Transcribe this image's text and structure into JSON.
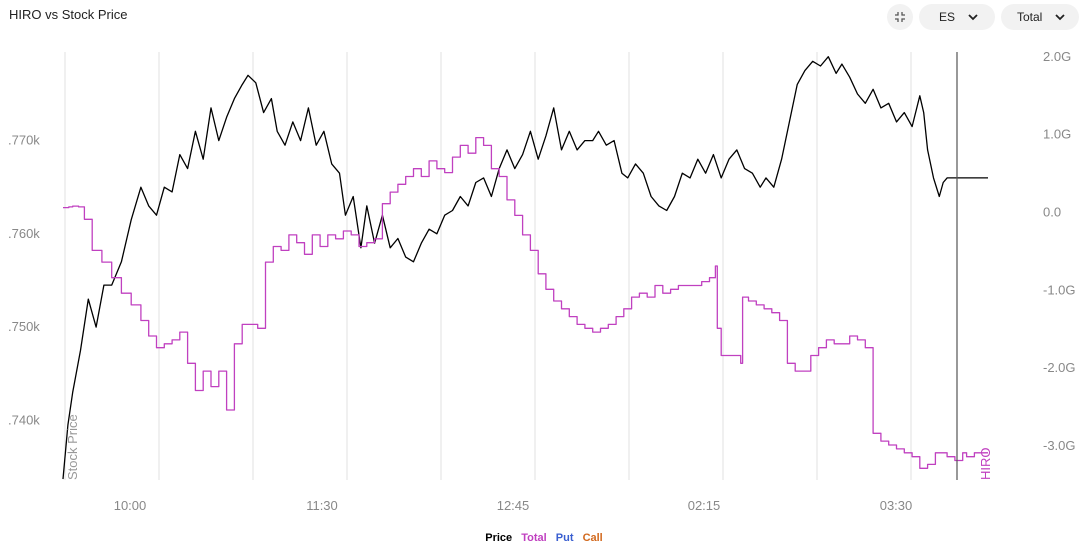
{
  "header": {
    "title": "HIRO vs Stock Price",
    "symbol_select": "ES",
    "type_select": "Total"
  },
  "icons": {
    "collapse": "collapse-arrows-icon",
    "dropdown": "chevron-down-icon"
  },
  "colors": {
    "price": "#000000",
    "total": "#c040c0",
    "put": "#3a5fd0",
    "call": "#d2691e",
    "grid": "#e2e2e2",
    "axis_text": "#888888"
  },
  "chart_data": {
    "type": "line",
    "title": "HIRO vs Stock Price",
    "xlabel": "",
    "ylabel_left": "Stock Price",
    "ylabel_right": "HIRO",
    "x_ticks": [
      "10:00",
      "11:30",
      "12:45",
      "02:15",
      "03:30"
    ],
    "y_left_ticks": [
      ".740k",
      ".750k",
      ".760k",
      ".770k"
    ],
    "y_right_ticks": [
      "2.0G",
      "1.0G",
      "0.0",
      "-1.0G",
      "-2.0G",
      "-3.0G"
    ],
    "y_left_range": [
      0.7336,
      0.7795
    ],
    "y_right_range": [
      -3.45,
      2.05
    ],
    "grid": true,
    "legend": [
      "Price",
      "Total",
      "Put",
      "Call"
    ],
    "legend_position": "bottom",
    "series": [
      {
        "name": "Price",
        "axis": "left",
        "points": [
          [
            0,
            0.7337
          ],
          [
            0.005,
            0.7395
          ],
          [
            0.01,
            0.743
          ],
          [
            0.018,
            0.7475
          ],
          [
            0.026,
            0.753
          ],
          [
            0.034,
            0.75
          ],
          [
            0.042,
            0.7545
          ],
          [
            0.05,
            0.7545
          ],
          [
            0.06,
            0.757
          ],
          [
            0.07,
            0.7615
          ],
          [
            0.08,
            0.765
          ],
          [
            0.088,
            0.763
          ],
          [
            0.096,
            0.762
          ],
          [
            0.104,
            0.765
          ],
          [
            0.112,
            0.7645
          ],
          [
            0.12,
            0.7685
          ],
          [
            0.128,
            0.767
          ],
          [
            0.136,
            0.771
          ],
          [
            0.144,
            0.768
          ],
          [
            0.152,
            0.7735
          ],
          [
            0.16,
            0.77
          ],
          [
            0.168,
            0.7725
          ],
          [
            0.176,
            0.7745
          ],
          [
            0.184,
            0.776
          ],
          [
            0.19,
            0.777
          ],
          [
            0.198,
            0.7762
          ],
          [
            0.206,
            0.773
          ],
          [
            0.214,
            0.7745
          ],
          [
            0.22,
            0.771
          ],
          [
            0.228,
            0.7695
          ],
          [
            0.236,
            0.772
          ],
          [
            0.244,
            0.77
          ],
          [
            0.252,
            0.7735
          ],
          [
            0.26,
            0.7695
          ],
          [
            0.268,
            0.771
          ],
          [
            0.276,
            0.7675
          ],
          [
            0.284,
            0.7665
          ],
          [
            0.29,
            0.762
          ],
          [
            0.298,
            0.764
          ],
          [
            0.306,
            0.7585
          ],
          [
            0.312,
            0.763
          ],
          [
            0.32,
            0.759
          ],
          [
            0.328,
            0.762
          ],
          [
            0.336,
            0.7585
          ],
          [
            0.344,
            0.7595
          ],
          [
            0.352,
            0.7575
          ],
          [
            0.36,
            0.757
          ],
          [
            0.368,
            0.759
          ],
          [
            0.376,
            0.7605
          ],
          [
            0.384,
            0.76
          ],
          [
            0.392,
            0.762
          ],
          [
            0.4,
            0.7625
          ],
          [
            0.408,
            0.764
          ],
          [
            0.416,
            0.763
          ],
          [
            0.424,
            0.7655
          ],
          [
            0.432,
            0.766
          ],
          [
            0.44,
            0.764
          ],
          [
            0.448,
            0.767
          ],
          [
            0.456,
            0.769
          ],
          [
            0.464,
            0.767
          ],
          [
            0.472,
            0.7685
          ],
          [
            0.48,
            0.771
          ],
          [
            0.488,
            0.768
          ],
          [
            0.496,
            0.7705
          ],
          [
            0.504,
            0.7735
          ],
          [
            0.512,
            0.769
          ],
          [
            0.52,
            0.771
          ],
          [
            0.528,
            0.769
          ],
          [
            0.536,
            0.77
          ],
          [
            0.544,
            0.77
          ],
          [
            0.55,
            0.771
          ],
          [
            0.558,
            0.7695
          ],
          [
            0.566,
            0.77
          ],
          [
            0.574,
            0.7665
          ],
          [
            0.58,
            0.766
          ],
          [
            0.588,
            0.7675
          ],
          [
            0.596,
            0.7665
          ],
          [
            0.604,
            0.764
          ],
          [
            0.612,
            0.763
          ],
          [
            0.62,
            0.7625
          ],
          [
            0.628,
            0.764
          ],
          [
            0.636,
            0.7665
          ],
          [
            0.644,
            0.766
          ],
          [
            0.652,
            0.768
          ],
          [
            0.66,
            0.7665
          ],
          [
            0.668,
            0.7685
          ],
          [
            0.676,
            0.766
          ],
          [
            0.684,
            0.768
          ],
          [
            0.692,
            0.769
          ],
          [
            0.7,
            0.767
          ],
          [
            0.708,
            0.7665
          ],
          [
            0.716,
            0.765
          ],
          [
            0.722,
            0.766
          ],
          [
            0.73,
            0.765
          ],
          [
            0.738,
            0.768
          ],
          [
            0.746,
            0.772
          ],
          [
            0.754,
            0.776
          ],
          [
            0.762,
            0.7775
          ],
          [
            0.77,
            0.7785
          ],
          [
            0.778,
            0.778
          ],
          [
            0.786,
            0.779
          ],
          [
            0.794,
            0.7772
          ],
          [
            0.8,
            0.7782
          ],
          [
            0.808,
            0.7768
          ],
          [
            0.816,
            0.775
          ],
          [
            0.824,
            0.774
          ],
          [
            0.832,
            0.7755
          ],
          [
            0.84,
            0.7735
          ],
          [
            0.848,
            0.774
          ],
          [
            0.856,
            0.772
          ],
          [
            0.864,
            0.773
          ],
          [
            0.872,
            0.7715
          ],
          [
            0.88,
            0.7748
          ],
          [
            0.884,
            0.773
          ],
          [
            0.888,
            0.769
          ],
          [
            0.894,
            0.766
          ],
          [
            0.9,
            0.764
          ],
          [
            0.904,
            0.7655
          ],
          [
            0.908,
            0.766
          ],
          [
            0.915,
            0.766
          ],
          [
            0.93,
            0.766
          ],
          [
            0.95,
            0.766
          ]
        ]
      },
      {
        "name": "Total",
        "axis": "right",
        "points": [
          [
            0,
            0.05
          ],
          [
            0.006,
            0.06
          ],
          [
            0.01,
            0.07
          ],
          [
            0.016,
            0.06
          ],
          [
            0.022,
            -0.1
          ],
          [
            0.03,
            -0.5
          ],
          [
            0.04,
            -0.65
          ],
          [
            0.05,
            -0.85
          ],
          [
            0.06,
            -1.05
          ],
          [
            0.07,
            -1.2
          ],
          [
            0.08,
            -1.4
          ],
          [
            0.088,
            -1.6
          ],
          [
            0.096,
            -1.75
          ],
          [
            0.104,
            -1.7
          ],
          [
            0.112,
            -1.65
          ],
          [
            0.12,
            -1.55
          ],
          [
            0.128,
            -1.95
          ],
          [
            0.136,
            -2.3
          ],
          [
            0.144,
            -2.05
          ],
          [
            0.152,
            -2.25
          ],
          [
            0.16,
            -2.05
          ],
          [
            0.168,
            -2.55
          ],
          [
            0.176,
            -1.7
          ],
          [
            0.184,
            -1.45
          ],
          [
            0.192,
            -1.45
          ],
          [
            0.2,
            -1.5
          ],
          [
            0.208,
            -0.65
          ],
          [
            0.216,
            -0.45
          ],
          [
            0.224,
            -0.5
          ],
          [
            0.232,
            -0.3
          ],
          [
            0.24,
            -0.4
          ],
          [
            0.248,
            -0.55
          ],
          [
            0.256,
            -0.3
          ],
          [
            0.264,
            -0.45
          ],
          [
            0.272,
            -0.3
          ],
          [
            0.28,
            -0.35
          ],
          [
            0.288,
            -0.25
          ],
          [
            0.296,
            -0.3
          ],
          [
            0.304,
            -0.45
          ],
          [
            0.312,
            -0.4
          ],
          [
            0.32,
            -0.35
          ],
          [
            0.328,
            0.1
          ],
          [
            0.336,
            0.25
          ],
          [
            0.344,
            0.35
          ],
          [
            0.352,
            0.45
          ],
          [
            0.36,
            0.55
          ],
          [
            0.368,
            0.45
          ],
          [
            0.376,
            0.65
          ],
          [
            0.384,
            0.55
          ],
          [
            0.392,
            0.5
          ],
          [
            0.4,
            0.7
          ],
          [
            0.408,
            0.85
          ],
          [
            0.416,
            0.75
          ],
          [
            0.424,
            0.95
          ],
          [
            0.432,
            0.85
          ],
          [
            0.44,
            0.55
          ],
          [
            0.448,
            0.45
          ],
          [
            0.456,
            0.15
          ],
          [
            0.464,
            -0.05
          ],
          [
            0.472,
            -0.3
          ],
          [
            0.48,
            -0.5
          ],
          [
            0.488,
            -0.8
          ],
          [
            0.496,
            -1.0
          ],
          [
            0.504,
            -1.15
          ],
          [
            0.512,
            -1.25
          ],
          [
            0.52,
            -1.35
          ],
          [
            0.528,
            -1.45
          ],
          [
            0.536,
            -1.5
          ],
          [
            0.544,
            -1.55
          ],
          [
            0.552,
            -1.5
          ],
          [
            0.56,
            -1.45
          ],
          [
            0.568,
            -1.35
          ],
          [
            0.576,
            -1.25
          ],
          [
            0.584,
            -1.1
          ],
          [
            0.592,
            -1.05
          ],
          [
            0.6,
            -1.1
          ],
          [
            0.608,
            -0.95
          ],
          [
            0.616,
            -1.05
          ],
          [
            0.624,
            -1.0
          ],
          [
            0.632,
            -0.95
          ],
          [
            0.64,
            -0.95
          ],
          [
            0.648,
            -0.95
          ],
          [
            0.656,
            -0.9
          ],
          [
            0.664,
            -0.85
          ],
          [
            0.67,
            -0.7
          ],
          [
            0.672,
            -1.5
          ],
          [
            0.676,
            -1.85
          ],
          [
            0.68,
            -1.85
          ],
          [
            0.688,
            -1.85
          ],
          [
            0.696,
            -1.95
          ],
          [
            0.698,
            -1.1
          ],
          [
            0.704,
            -1.15
          ],
          [
            0.712,
            -1.2
          ],
          [
            0.72,
            -1.25
          ],
          [
            0.728,
            -1.3
          ],
          [
            0.736,
            -1.4
          ],
          [
            0.744,
            -1.95
          ],
          [
            0.752,
            -2.05
          ],
          [
            0.76,
            -2.05
          ],
          [
            0.768,
            -1.85
          ],
          [
            0.776,
            -1.75
          ],
          [
            0.784,
            -1.65
          ],
          [
            0.792,
            -1.7
          ],
          [
            0.8,
            -1.7
          ],
          [
            0.808,
            -1.6
          ],
          [
            0.816,
            -1.65
          ],
          [
            0.824,
            -1.75
          ],
          [
            0.832,
            -2.85
          ],
          [
            0.84,
            -2.95
          ],
          [
            0.848,
            -3.0
          ],
          [
            0.856,
            -3.05
          ],
          [
            0.864,
            -3.1
          ],
          [
            0.872,
            -3.15
          ],
          [
            0.88,
            -3.3
          ],
          [
            0.888,
            -3.25
          ],
          [
            0.896,
            -3.1
          ],
          [
            0.9,
            -3.1
          ],
          [
            0.908,
            -3.15
          ],
          [
            0.916,
            -3.2
          ],
          [
            0.924,
            -3.1
          ],
          [
            0.928,
            -3.15
          ],
          [
            0.936,
            -3.1
          ],
          [
            0.95,
            -3.1
          ]
        ]
      }
    ]
  },
  "legend_items": {
    "price": "Price",
    "total": "Total",
    "put": "Put",
    "call": "Call"
  }
}
